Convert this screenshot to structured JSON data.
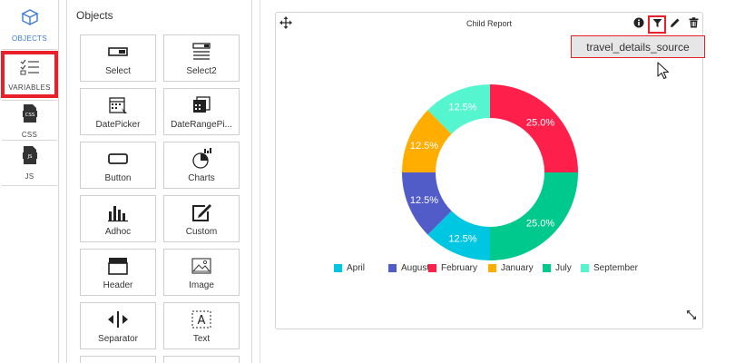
{
  "nav": {
    "objects_label": "OBJECTS",
    "variables_label": "VARIABLES",
    "css_label": "CSS",
    "js_label": "JS"
  },
  "objects_panel": {
    "title": "Objects",
    "tiles": [
      {
        "label": "Select",
        "icon": "select-icon"
      },
      {
        "label": "Select2",
        "icon": "select2-icon"
      },
      {
        "label": "DatePicker",
        "icon": "datepicker-icon"
      },
      {
        "label": "DateRangePi...",
        "icon": "daterangepicker-icon"
      },
      {
        "label": "Button",
        "icon": "button-icon"
      },
      {
        "label": "Charts",
        "icon": "charts-icon"
      },
      {
        "label": "Adhoc",
        "icon": "adhoc-icon"
      },
      {
        "label": "Custom",
        "icon": "custom-icon"
      },
      {
        "label": "Header",
        "icon": "header-icon"
      },
      {
        "label": "Image",
        "icon": "image-icon"
      },
      {
        "label": "Separator",
        "icon": "separator-icon"
      },
      {
        "label": "Text",
        "icon": "text-icon"
      }
    ]
  },
  "widget": {
    "title": "Child Report",
    "tooltip": "travel_details_source",
    "toolbar": [
      "info-icon",
      "filter-icon",
      "edit-icon",
      "trash-icon"
    ]
  },
  "colors": {
    "accent": "#3a7bd5",
    "highlight": "#e8202a"
  },
  "chart_data": {
    "type": "pie",
    "title": "",
    "donut": true,
    "legend_position": "bottom",
    "slices": [
      {
        "label": "February",
        "value": 25.0,
        "display": "25.0%",
        "color": "#ff1f4b"
      },
      {
        "label": "July",
        "value": 25.0,
        "display": "25.0%",
        "color": "#00c98d"
      },
      {
        "label": "April",
        "value": 12.5,
        "display": "12.5%",
        "color": "#00c7e1"
      },
      {
        "label": "August",
        "value": 12.5,
        "display": "12.5%",
        "color": "#525cc8"
      },
      {
        "label": "January",
        "value": 12.5,
        "display": "12.5%",
        "color": "#ffad00"
      },
      {
        "label": "September",
        "value": 12.5,
        "display": "12.5%",
        "color": "#55f5cf"
      }
    ],
    "legend": [
      {
        "label": "April",
        "color": "#00c7e1"
      },
      {
        "label": "August",
        "color": "#525cc8"
      },
      {
        "label": "February",
        "color": "#ff1f4b"
      },
      {
        "label": "January",
        "color": "#ffad00"
      },
      {
        "label": "July",
        "color": "#00c98d"
      },
      {
        "label": "September",
        "color": "#55f5cf"
      }
    ]
  }
}
